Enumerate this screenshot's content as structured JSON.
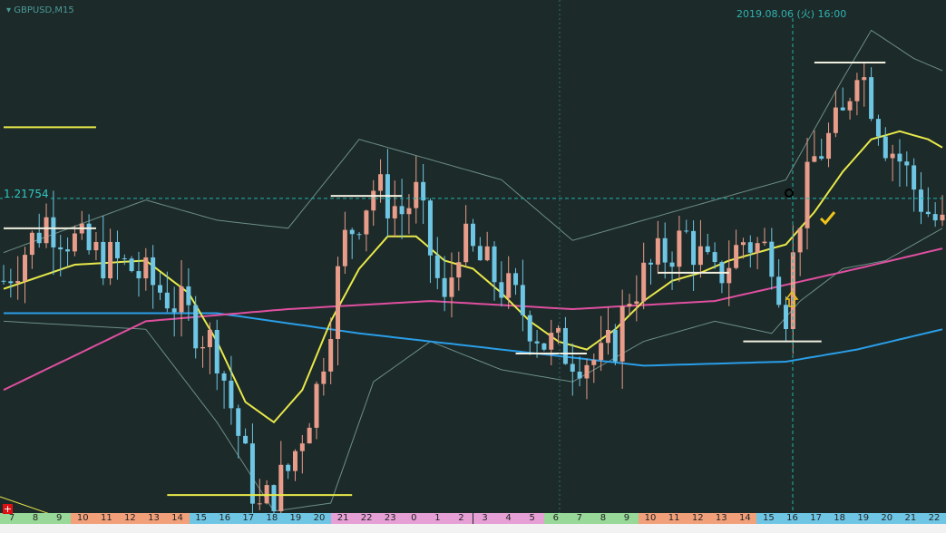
{
  "header": {
    "symbol": "GBPUSD,M15"
  },
  "crosshair": {
    "time_label": "2019.08.06 (火) 16:00",
    "price_label": "1.21754"
  },
  "colors": {
    "background": "#1c2a29",
    "bull_candle": "#e89c8a",
    "bear_candle": "#6ec6e4",
    "ma_short": "#e8e84a",
    "ma_mid": "#e04fa0",
    "ma_long": "#2a9ee8",
    "bollinger": "#6d8e88",
    "crosshair": "#22b3b0"
  },
  "chart_data": {
    "type": "candlestick",
    "symbol": "GBPUSD",
    "timeframe": "M15",
    "x_tick_labels": [
      "7",
      "8",
      "9",
      "10",
      "11",
      "12",
      "13",
      "14",
      "15",
      "16",
      "17",
      "18",
      "19",
      "20",
      "21",
      "22",
      "23",
      "0",
      "1",
      "2",
      "3",
      "4",
      "5",
      "6",
      "7",
      "8",
      "9",
      "10",
      "11",
      "12",
      "13",
      "14",
      "15",
      "16",
      "17",
      "18",
      "19",
      "20",
      "21",
      "22"
    ],
    "hour_tick_colors": [
      "#98d898",
      "#98d898",
      "#98d898",
      "#f2a07a",
      "#f2a07a",
      "#f2a07a",
      "#f2a07a",
      "#f2a07a",
      "#6ec6e4",
      "#6ec6e4",
      "#6ec6e4",
      "#6ec6e4",
      "#6ec6e4",
      "#6ec6e4",
      "#e6a0d6",
      "#e6a0d6",
      "#e6a0d6",
      "#e6a0d6",
      "#e6a0d6",
      "#e6a0d6",
      "#e6a0d6",
      "#e6a0d6",
      "#e6a0d6",
      "#98d898",
      "#98d898",
      "#98d898",
      "#98d898",
      "#f2a07a",
      "#f2a07a",
      "#f2a07a",
      "#f2a07a",
      "#f2a07a",
      "#6ec6e4",
      "#6ec6e4",
      "#6ec6e4",
      "#6ec6e4",
      "#6ec6e4",
      "#6ec6e4",
      "#6ec6e4",
      "#6ec6e4"
    ],
    "crosshair_price": 1.21754,
    "crosshair_time": "2019.08.06 16:00",
    "price_range": [
      1.21,
      1.222
    ],
    "key_points": [
      [
        0,
        1.2155
      ],
      [
        6,
        1.217
      ],
      [
        12,
        1.2162
      ],
      [
        18,
        1.2158
      ],
      [
        24,
        1.215
      ],
      [
        30,
        1.2138
      ],
      [
        34,
        1.211
      ],
      [
        36,
        1.2098
      ],
      [
        40,
        1.2108
      ],
      [
        44,
        1.2128
      ],
      [
        48,
        1.2165
      ],
      [
        52,
        1.2178
      ],
      [
        56,
        1.2172
      ],
      [
        58,
        1.2176
      ],
      [
        62,
        1.2148
      ],
      [
        64,
        1.2165
      ],
      [
        68,
        1.2158
      ],
      [
        72,
        1.215
      ],
      [
        76,
        1.214
      ],
      [
        80,
        1.2137
      ],
      [
        84,
        1.2135
      ],
      [
        86,
        1.214
      ],
      [
        88,
        1.2152
      ],
      [
        92,
        1.216
      ],
      [
        96,
        1.2166
      ],
      [
        100,
        1.2155
      ],
      [
        104,
        1.2165
      ],
      [
        108,
        1.2162
      ],
      [
        110,
        1.2148
      ],
      [
        112,
        1.2172
      ],
      [
        114,
        1.2185
      ],
      [
        116,
        1.219
      ],
      [
        118,
        1.2195
      ],
      [
        120,
        1.221
      ],
      [
        122,
        1.22
      ],
      [
        124,
        1.219
      ],
      [
        126,
        1.2185
      ],
      [
        128,
        1.2178
      ],
      [
        130,
        1.2172
      ],
      [
        132,
        1.2168
      ]
    ],
    "ma_short": [
      [
        0,
        1.2153
      ],
      [
        10,
        1.2159
      ],
      [
        20,
        1.216
      ],
      [
        26,
        1.2152
      ],
      [
        30,
        1.214
      ],
      [
        34,
        1.2125
      ],
      [
        38,
        1.212
      ],
      [
        42,
        1.2128
      ],
      [
        46,
        1.2145
      ],
      [
        50,
        1.2158
      ],
      [
        54,
        1.2166
      ],
      [
        58,
        1.2166
      ],
      [
        62,
        1.216
      ],
      [
        66,
        1.2158
      ],
      [
        70,
        1.2152
      ],
      [
        74,
        1.2145
      ],
      [
        78,
        1.214
      ],
      [
        82,
        1.2138
      ],
      [
        86,
        1.2143
      ],
      [
        90,
        1.215
      ],
      [
        94,
        1.2155
      ],
      [
        98,
        1.2157
      ],
      [
        102,
        1.216
      ],
      [
        106,
        1.2162
      ],
      [
        110,
        1.2164
      ],
      [
        114,
        1.2172
      ],
      [
        118,
        1.2182
      ],
      [
        122,
        1.219
      ],
      [
        126,
        1.2192
      ],
      [
        130,
        1.219
      ],
      [
        132,
        1.2188
      ]
    ],
    "ma_mid": [
      [
        0,
        1.2128
      ],
      [
        20,
        1.2145
      ],
      [
        40,
        1.2148
      ],
      [
        60,
        1.215
      ],
      [
        80,
        1.2148
      ],
      [
        100,
        1.215
      ],
      [
        120,
        1.2158
      ],
      [
        132,
        1.2163
      ]
    ],
    "ma_long": [
      [
        0,
        1.2147
      ],
      [
        30,
        1.2147
      ],
      [
        50,
        1.2142
      ],
      [
        70,
        1.2138
      ],
      [
        90,
        1.2134
      ],
      [
        110,
        1.2135
      ],
      [
        120,
        1.2138
      ],
      [
        132,
        1.2143
      ]
    ],
    "bb_upper": [
      [
        0,
        1.2162
      ],
      [
        20,
        1.2175
      ],
      [
        30,
        1.217
      ],
      [
        40,
        1.2168
      ],
      [
        50,
        1.219
      ],
      [
        60,
        1.2185
      ],
      [
        70,
        1.218
      ],
      [
        80,
        1.2165
      ],
      [
        90,
        1.217
      ],
      [
        100,
        1.2175
      ],
      [
        110,
        1.218
      ],
      [
        118,
        1.2205
      ],
      [
        122,
        1.2217
      ],
      [
        128,
        1.221
      ],
      [
        132,
        1.2207
      ]
    ],
    "bb_lower": [
      [
        0,
        1.2145
      ],
      [
        20,
        1.2143
      ],
      [
        30,
        1.212
      ],
      [
        38,
        1.2098
      ],
      [
        46,
        1.21
      ],
      [
        52,
        1.213
      ],
      [
        60,
        1.214
      ],
      [
        70,
        1.2133
      ],
      [
        80,
        1.213
      ],
      [
        90,
        1.214
      ],
      [
        100,
        1.2145
      ],
      [
        108,
        1.2142
      ],
      [
        112,
        1.215
      ],
      [
        118,
        1.2158
      ],
      [
        124,
        1.216
      ],
      [
        132,
        1.2168
      ]
    ],
    "horizontal_levels": [
      {
        "price": 1.2193,
        "from": 0,
        "to": 13,
        "color": "#e8e84a"
      },
      {
        "price": 1.2168,
        "from": 0,
        "to": 13,
        "color": "#f1efe0"
      },
      {
        "price": 1.2176,
        "from": 46,
        "to": 56,
        "color": "#f1efe0"
      },
      {
        "price": 1.2137,
        "from": 72,
        "to": 82,
        "color": "#f1efe0"
      },
      {
        "price": 1.2157,
        "from": 92,
        "to": 102,
        "color": "#f1efe0"
      },
      {
        "price": 1.214,
        "from": 104,
        "to": 115,
        "color": "#f1efe0"
      },
      {
        "price": 1.2209,
        "from": 114,
        "to": 124,
        "color": "#f1efe0"
      },
      {
        "price": 1.2102,
        "from": 23,
        "to": 49,
        "color": "#e8e84a"
      }
    ]
  }
}
